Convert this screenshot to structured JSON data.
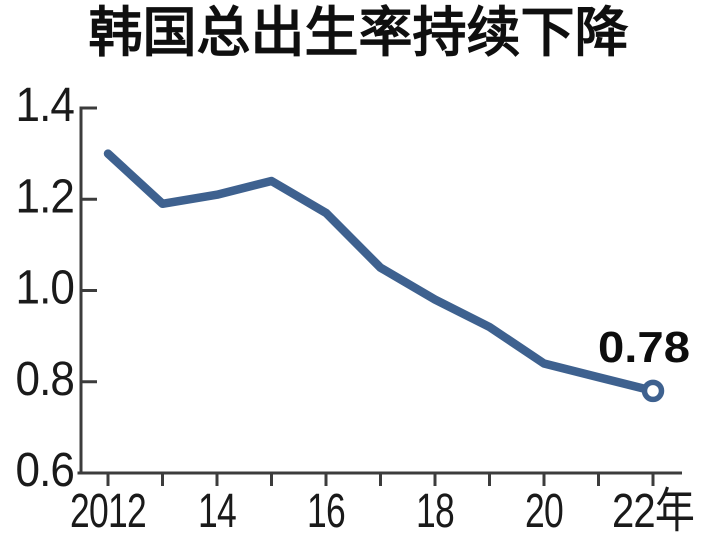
{
  "chart_data": {
    "type": "line",
    "title": "韩国总出生率持续下降",
    "x": [
      2012,
      2013,
      2014,
      2015,
      2016,
      2017,
      2018,
      2019,
      2020,
      2021,
      2022
    ],
    "values": [
      1.3,
      1.19,
      1.21,
      1.24,
      1.17,
      1.05,
      0.98,
      0.92,
      0.84,
      0.81,
      0.78
    ],
    "xlim": [
      2012,
      2022
    ],
    "ylim": [
      0.6,
      1.4
    ],
    "yticks": [
      {
        "value": 1.4,
        "label": "1.4"
      },
      {
        "value": 1.2,
        "label": "1.2"
      },
      {
        "value": 1.0,
        "label": "1.0"
      },
      {
        "value": 0.8,
        "label": "0.8"
      },
      {
        "value": 0.6,
        "label": "0.6"
      }
    ],
    "xticks": [
      {
        "value": 2012,
        "label": "2012"
      },
      {
        "value": 2014,
        "label": "14"
      },
      {
        "value": 2016,
        "label": "16"
      },
      {
        "value": 2018,
        "label": "18"
      },
      {
        "value": 2020,
        "label": "20"
      },
      {
        "value": 2022,
        "label": "22年"
      }
    ],
    "tick_marks_every_year": true,
    "grid": false,
    "legend": false,
    "annotation": {
      "text": "0.78",
      "x": 2022,
      "y": 0.78
    },
    "end_marker": "open-circle",
    "colors": {
      "line": "#3e618f",
      "axis": "#3c3c3c",
      "tick_text": "#1a1a1a",
      "title_text": "#0f0f0f",
      "background": "#ffffff"
    }
  }
}
